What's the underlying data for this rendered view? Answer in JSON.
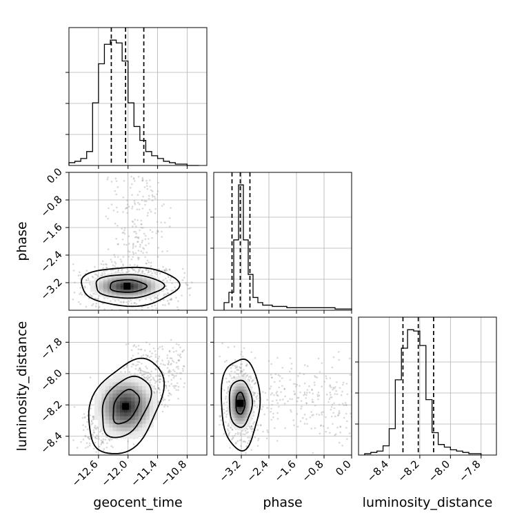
{
  "figure": {
    "type": "corner-plot",
    "grid": true,
    "colors": {
      "hist": "#000000",
      "grid": "#b0b0b0",
      "points": "#9a9a9a",
      "contour": "#000000"
    }
  },
  "chart_data": [
    {
      "type": "bar",
      "panel": "geocent_time-hist",
      "parameter": "geocent_time",
      "bin_edges": [
        -13.2,
        -13.08,
        -12.96,
        -12.84,
        -12.72,
        -12.6,
        -12.48,
        -12.36,
        -12.24,
        -12.12,
        -12.0,
        -11.88,
        -11.76,
        -11.64,
        -11.52,
        -11.4,
        -11.28,
        -11.16,
        -11.04,
        -10.92,
        -10.8,
        -10.68,
        -10.56
      ],
      "counts": [
        2,
        3,
        5,
        10,
        45,
        73,
        87,
        90,
        88,
        75,
        45,
        28,
        18,
        10,
        7,
        5,
        3,
        2,
        1,
        1,
        0,
        0
      ],
      "quantile_lines": [
        -12.34,
        -12.05,
        -11.68
      ],
      "xlim": [
        -13.2,
        -10.4
      ],
      "xticks": [
        -12.6,
        -12.0,
        -11.4,
        -10.8
      ],
      "xtick_labels": [
        "−12.6",
        "−12.0",
        "−11.4",
        "−10.8"
      ]
    },
    {
      "type": "scatter",
      "panel": "phase-vs-geocent_time",
      "x_param": "geocent_time",
      "y_param": "phase",
      "xlim": [
        -13.2,
        -10.4
      ],
      "ylim": [
        -4.0,
        0.0
      ],
      "xticks": [
        -12.6,
        -12.0,
        -11.4,
        -10.8
      ],
      "yticks": [
        0.0,
        -0.8,
        -1.6,
        -2.4,
        -3.2
      ],
      "ytick_labels": [
        "0.0",
        "−0.8",
        "−1.6",
        "−2.4",
        "−3.2"
      ],
      "mode": {
        "x": -12.02,
        "y": -3.3
      },
      "contour_levels": [
        {
          "rx": 0.36,
          "ry": 0.18,
          "shift": 0.02
        },
        {
          "rx": 0.66,
          "ry": 0.34,
          "shift": 0.06
        },
        {
          "rx": 0.94,
          "ry": 0.56,
          "shift": 0.1
        }
      ]
    },
    {
      "type": "scatter",
      "panel": "luminosity_distance-vs-geocent_time",
      "x_param": "geocent_time",
      "y_param": "luminosity_distance",
      "xlim": [
        -13.2,
        -10.4
      ],
      "ylim": [
        -8.52,
        -7.64
      ],
      "xticks": [
        -12.6,
        -12.0,
        -11.4,
        -10.8
      ],
      "yticks": [
        -8.4,
        -8.2,
        -8.0,
        -7.8
      ],
      "ytick_labels": [
        "−8.4",
        "−8.2",
        "−8.0",
        "−7.8"
      ],
      "mode": {
        "x": -12.05,
        "y": -8.21
      },
      "contour_levels": [
        {
          "rx": 0.3,
          "ry": 0.1,
          "tilt": -28
        },
        {
          "rx": 0.56,
          "ry": 0.18,
          "tilt": -28
        },
        {
          "rx": 0.86,
          "ry": 0.28,
          "tilt": -28
        }
      ]
    },
    {
      "type": "bar",
      "panel": "phase-hist",
      "parameter": "phase",
      "bin_edges": [
        -3.7,
        -3.56,
        -3.42,
        -3.28,
        -3.14,
        -3.0,
        -2.86,
        -2.72,
        -2.58,
        -2.44,
        -2.3,
        -2.16,
        -2.02,
        -1.88,
        -1.74,
        -1.6,
        -1.46,
        -1.32,
        -1.18,
        -1.04,
        -0.9,
        -0.76,
        -0.62,
        -0.48,
        -0.34,
        -0.2,
        -0.06,
        0.0
      ],
      "counts": [
        6,
        14,
        55,
        98,
        55,
        28,
        10,
        6,
        4,
        4,
        3,
        3,
        3,
        2,
        2,
        2,
        2,
        2,
        2,
        2,
        2,
        2,
        2,
        1,
        1,
        1,
        1
      ],
      "quantile_lines": [
        -3.47,
        -3.23,
        -2.95
      ],
      "xlim": [
        -4.0,
        0.0
      ],
      "xticks": [
        -3.2,
        -2.4,
        -1.6,
        -0.8,
        0.0
      ],
      "xtick_labels": [
        "−3.2",
        "−2.4",
        "−1.6",
        "−0.8",
        "0.0"
      ]
    },
    {
      "type": "scatter",
      "panel": "luminosity_distance-vs-phase",
      "x_param": "phase",
      "y_param": "luminosity_distance",
      "xlim": [
        -4.0,
        0.0
      ],
      "ylim": [
        -8.52,
        -7.64
      ],
      "xticks": [
        -3.2,
        -2.4,
        -1.6,
        -0.8,
        0.0
      ],
      "yticks": [
        -8.4,
        -8.2,
        -8.0,
        -7.8
      ],
      "mode": {
        "x": -3.23,
        "y": -8.19
      },
      "contour_levels": [
        {
          "rx": 0.13,
          "ry": 0.07
        },
        {
          "rx": 0.33,
          "ry": 0.15
        },
        {
          "rx": 0.56,
          "ry": 0.29
        }
      ]
    },
    {
      "type": "bar",
      "panel": "luminosity_distance-hist",
      "parameter": "luminosity_distance",
      "bin_edges": [
        -8.56,
        -8.52,
        -8.48,
        -8.44,
        -8.4,
        -8.36,
        -8.32,
        -8.28,
        -8.24,
        -8.2,
        -8.16,
        -8.12,
        -8.08,
        -8.04,
        -8.0,
        -7.96,
        -7.92,
        -7.88,
        -7.84,
        -7.8
      ],
      "counts": [
        1,
        2,
        3,
        7,
        20,
        57,
        81,
        95,
        94,
        83,
        42,
        17,
        8,
        6,
        4,
        3,
        2,
        1,
        1
      ],
      "quantile_lines": [
        -8.31,
        -8.21,
        -8.11
      ],
      "xlim": [
        -8.6,
        -7.7
      ],
      "xticks": [
        -8.4,
        -8.2,
        -8.0,
        -7.8
      ],
      "xtick_labels": [
        "−8.4",
        "−8.2",
        "−8.0",
        "−7.8"
      ]
    }
  ],
  "axis_labels": {
    "x": [
      "geocent_time",
      "phase",
      "luminosity_distance"
    ],
    "y": [
      "phase",
      "luminosity_distance"
    ]
  }
}
